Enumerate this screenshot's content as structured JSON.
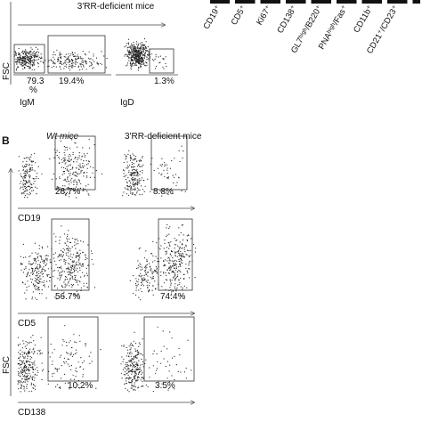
{
  "panel_a": {
    "title": "3'RR-deficient mice",
    "y_axis": "FSC",
    "plots": [
      {
        "x_axis": "IgM",
        "gates": [
          [
            "79.3",
            "%"
          ],
          [
            "19.4%"
          ]
        ]
      },
      {
        "x_axis": "IgD",
        "gates": [
          [
            "1.3%"
          ]
        ]
      }
    ],
    "markers": [
      "CD19⁺",
      "CD5⁺",
      "Ki67⁺",
      "CD138⁺",
      "GL7ʰⁱᵍʰ/B220⁺",
      "PNAʰⁱᵍʰ/Fas⁺",
      "CD11b⁺",
      "CD21⁺/CD23⁺"
    ]
  },
  "panel_b": {
    "letter": "B",
    "columns": [
      "Wt mice",
      "3'RR-deficient mice"
    ],
    "y_axis": "FSC",
    "rows": [
      {
        "x_axis": "CD19",
        "gates": [
          "28.7%",
          "8.8%"
        ]
      },
      {
        "x_axis": "CD5",
        "gates": [
          "56.7%",
          "74.4%"
        ]
      },
      {
        "x_axis": "CD138",
        "gates": [
          "10.2%",
          "3.5%"
        ]
      }
    ]
  }
}
